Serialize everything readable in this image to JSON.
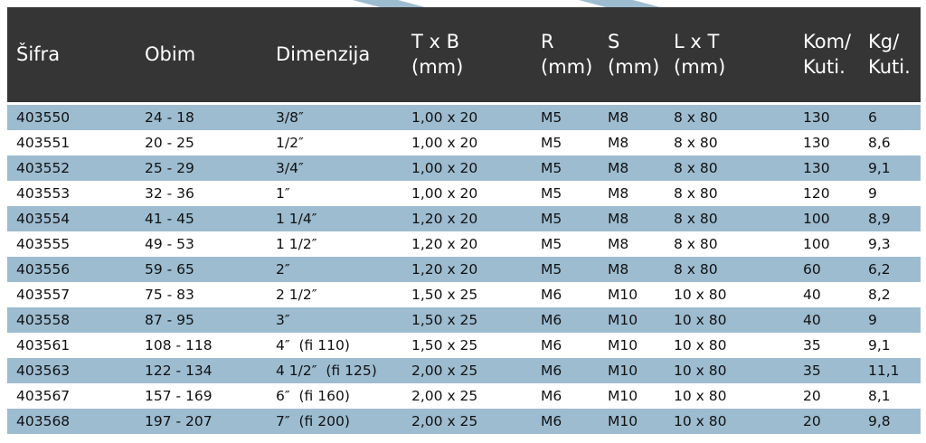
{
  "table": {
    "headers": [
      [
        "Šifra"
      ],
      [
        "Obim"
      ],
      [
        "Dimenzija"
      ],
      [
        "T x B",
        "(mm)"
      ],
      [
        "R",
        "(mm)"
      ],
      [
        "S",
        "(mm)"
      ],
      [
        "L x T",
        "(mm)"
      ],
      [
        "Kom/",
        "Kuti."
      ],
      [
        "Kg/",
        "Kuti."
      ]
    ],
    "rows": [
      [
        "403550",
        "24 - 18",
        "3/8″",
        "1,00 x 20",
        "M5",
        "M8",
        "8 x 80",
        "130",
        "6"
      ],
      [
        "403551",
        "20 - 25",
        "1/2″",
        "1,00 x 20",
        "M5",
        "M8",
        "8 x 80",
        "130",
        "8,6"
      ],
      [
        "403552",
        "25 - 29",
        "3/4″",
        "1,00 x 20",
        "M5",
        "M8",
        "8 x 80",
        "130",
        "9,1"
      ],
      [
        "403553",
        "32 - 36",
        "1″",
        "1,00 x 20",
        "M5",
        "M8",
        "8 x 80",
        "120",
        "9"
      ],
      [
        "403554",
        "41 - 45",
        "1 1/4″",
        "1,20 x 20",
        "M5",
        "M8",
        "8 x 80",
        "100",
        "8,9"
      ],
      [
        "403555",
        "49 - 53",
        "1 1/2″",
        "1,20 x 20",
        "M5",
        "M8",
        "8 x 80",
        "100",
        "9,3"
      ],
      [
        "403556",
        "59 - 65",
        "2″",
        "1,20 x 20",
        "M5",
        "M8",
        "8 x 80",
        "60",
        "6,2"
      ],
      [
        "403557",
        "75 - 83",
        "2 1/2″",
        "1,50 x 25",
        "M6",
        "M10",
        "10 x 80",
        "40",
        "8,2"
      ],
      [
        "403558",
        "87 - 95",
        "3″",
        "1,50 x 25",
        "M6",
        "M10",
        "10 x 80",
        "40",
        "9"
      ],
      [
        "403561",
        "108 - 118",
        "4″  (fi 110)",
        "1,50 x 25",
        "M6",
        "M10",
        "10 x 80",
        "35",
        "9,1"
      ],
      [
        "403563",
        "122 - 134",
        "4 1/2″  (fi 125)",
        "2,00 x 25",
        "M6",
        "M10",
        "10 x 80",
        "35",
        "11,1"
      ],
      [
        "403567",
        "157 - 169",
        "6″  (fi 160)",
        "2,00 x 25",
        "M6",
        "M10",
        "10 x 80",
        "20",
        "8,1"
      ],
      [
        "403568",
        "197 - 207",
        "7″  (fi 200)",
        "2,00 x 25",
        "M6",
        "M10",
        "10 x 80",
        "20",
        "9,8"
      ]
    ]
  }
}
